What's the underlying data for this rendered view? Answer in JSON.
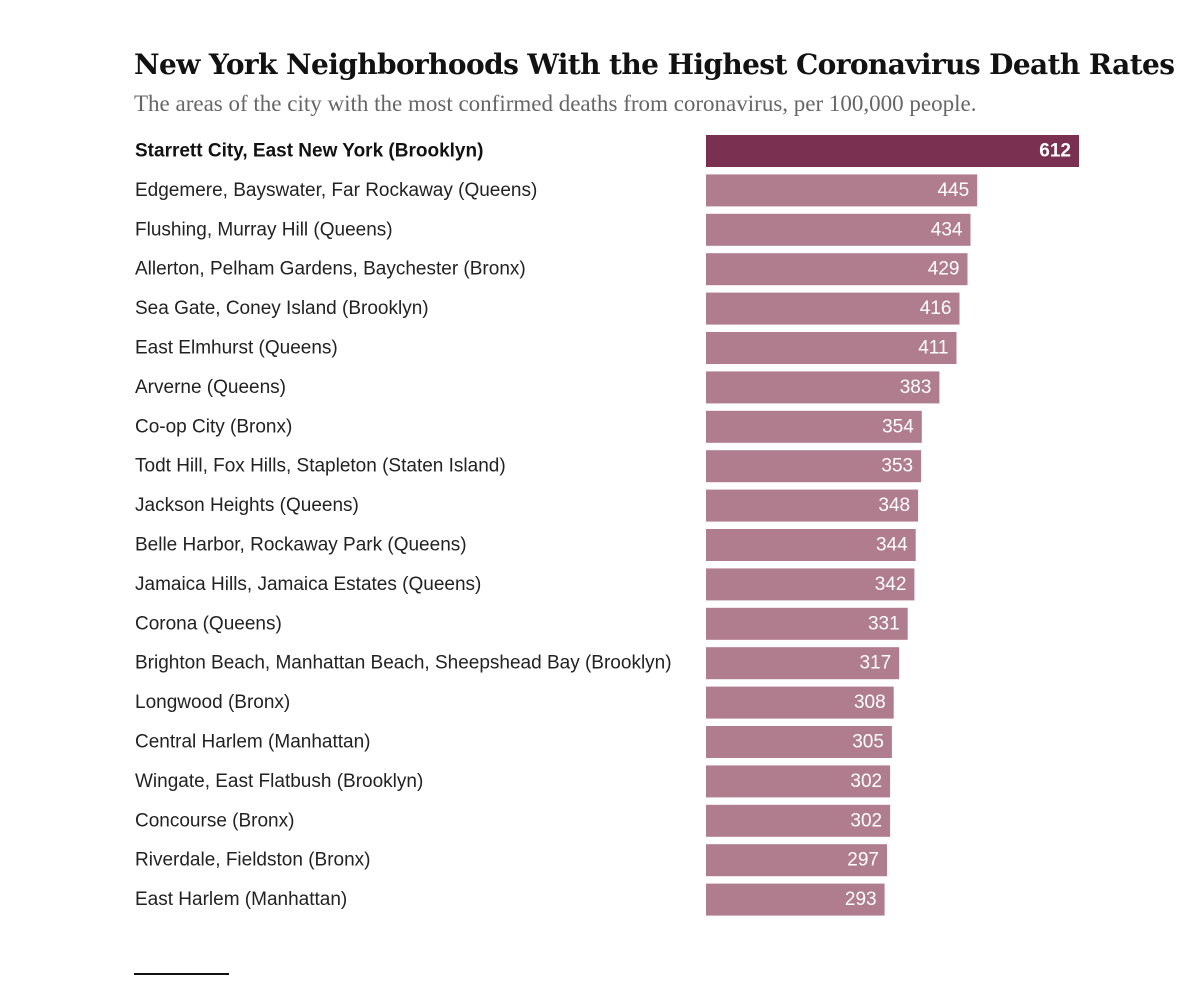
{
  "chart_data": {
    "type": "bar",
    "orientation": "horizontal",
    "title": "New York Neighborhoods With the Highest Coronavirus Death Rates",
    "subtitle": "The areas of the city with the most confirmed deaths from coronavirus, per 100,000 people.",
    "categories": [
      "Starrett City, East New York (Brooklyn)",
      "Edgemere, Bayswater, Far Rockaway (Queens)",
      "Flushing, Murray Hill (Queens)",
      "Allerton, Pelham Gardens, Baychester (Bronx)",
      "Sea Gate, Coney Island (Brooklyn)",
      "East Elmhurst (Queens)",
      "Arverne (Queens)",
      "Co-op City (Bronx)",
      "Todt Hill, Fox Hills, Stapleton (Staten Island)",
      "Jackson Heights (Queens)",
      "Belle Harbor, Rockaway Park (Queens)",
      "Jamaica Hills, Jamaica Estates (Queens)",
      "Corona (Queens)",
      "Brighton Beach, Manhattan Beach, Sheepshead Bay (Brooklyn)",
      "Longwood (Bronx)",
      "Central Harlem (Manhattan)",
      "Wingate, East Flatbush (Brooklyn)",
      "Concourse (Bronx)",
      "Riverdale, Fieldston (Bronx)",
      "East Harlem (Manhattan)"
    ],
    "values": [
      612,
      445,
      434,
      429,
      416,
      411,
      383,
      354,
      353,
      348,
      344,
      342,
      331,
      317,
      308,
      305,
      302,
      302,
      297,
      293
    ],
    "highlight_index": 0,
    "xlim": [
      0,
      612
    ],
    "xlabel": "",
    "ylabel": "",
    "grid": false,
    "colors": {
      "highlight": "#7a3050",
      "bar": "#b07d8f",
      "value_text": "#ffffff"
    }
  }
}
